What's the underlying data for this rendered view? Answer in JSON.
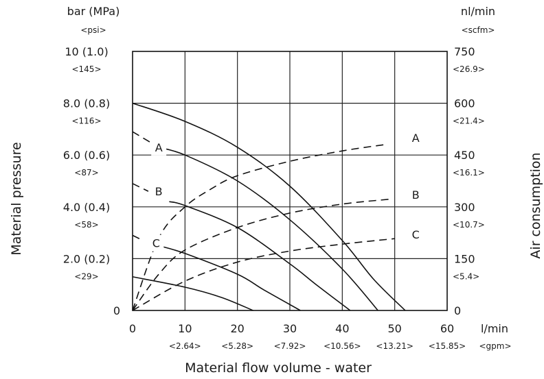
{
  "chart_data": {
    "type": "line",
    "title": "",
    "xlabel": "Material flow volume - water",
    "x_unit": "l/min",
    "x_unit_alt": "<gpm>",
    "xlim": [
      0,
      60
    ],
    "x_ticks": [
      {
        "value": 0,
        "label": "0",
        "alt": ""
      },
      {
        "value": 10,
        "label": "10",
        "alt": "<2.64>"
      },
      {
        "value": 20,
        "label": "20",
        "alt": "<5.28>"
      },
      {
        "value": 30,
        "label": "30",
        "alt": "<7.92>"
      },
      {
        "value": 40,
        "label": "40",
        "alt": "<10.56>"
      },
      {
        "value": 50,
        "label": "50",
        "alt": "<13.21>"
      },
      {
        "value": 60,
        "label": "60",
        "alt": "<15.85>"
      }
    ],
    "ylabel_left": "Material pressure",
    "y_left_unit": "bar (MPa)",
    "y_left_unit_alt": "<psi>",
    "ylim_left": [
      0,
      10
    ],
    "y_left_ticks": [
      {
        "value": 0,
        "label": "0",
        "alt": ""
      },
      {
        "value": 2,
        "label": "2.0 (0.2)",
        "alt": "<29>"
      },
      {
        "value": 4,
        "label": "4.0 (0.4)",
        "alt": "<58>"
      },
      {
        "value": 6,
        "label": "6.0 (0.6)",
        "alt": "<87>"
      },
      {
        "value": 8,
        "label": "8.0 (0.8)",
        "alt": "<116>"
      },
      {
        "value": 10,
        "label": "10 (1.0)",
        "alt": "<145>"
      }
    ],
    "ylabel_right": "Air consumption",
    "y_right_unit": "nl/min",
    "y_right_unit_alt": "<scfm>",
    "ylim_right": [
      0,
      750
    ],
    "y_right_ticks": [
      {
        "value": 0,
        "label": "0",
        "alt": ""
      },
      {
        "value": 150,
        "label": "150",
        "alt": "<5.4>"
      },
      {
        "value": 300,
        "label": "300",
        "alt": "<10.7>"
      },
      {
        "value": 450,
        "label": "450",
        "alt": "<16.1>"
      },
      {
        "value": 600,
        "label": "600",
        "alt": "<21.4>"
      },
      {
        "value": 750,
        "label": "750",
        "alt": "<26.9>"
      }
    ],
    "grid": true,
    "pressure_series": [
      {
        "name": "",
        "style": "solid",
        "axis": "left",
        "points": [
          [
            0,
            8.0
          ],
          [
            10,
            7.3
          ],
          [
            20,
            6.3
          ],
          [
            30,
            4.8
          ],
          [
            40,
            2.7
          ],
          [
            46,
            1.2
          ],
          [
            52,
            0
          ]
        ]
      },
      {
        "name": "A",
        "style": "dashed",
        "axis": "left",
        "points": [
          [
            0,
            6.9
          ],
          [
            5,
            6.3
          ]
        ]
      },
      {
        "name": "A",
        "style": "solid",
        "axis": "left",
        "points": [
          [
            5,
            6.3
          ],
          [
            10,
            6.0
          ],
          [
            20,
            5.0
          ],
          [
            30,
            3.5
          ],
          [
            40,
            1.6
          ],
          [
            46.8,
            0
          ]
        ]
      },
      {
        "name": "B",
        "style": "dashed",
        "axis": "left",
        "points": [
          [
            0,
            4.9
          ],
          [
            3,
            4.6
          ]
        ]
      },
      {
        "name": "B",
        "style": "solid",
        "axis": "left",
        "points": [
          [
            7,
            4.2
          ],
          [
            10,
            4.05
          ],
          [
            20,
            3.2
          ],
          [
            30,
            1.8
          ],
          [
            35,
            1.0
          ],
          [
            41.5,
            0
          ]
        ]
      },
      {
        "name": "C",
        "style": "dashed",
        "axis": "left",
        "points": [
          [
            0,
            2.9
          ],
          [
            2,
            2.7
          ]
        ]
      },
      {
        "name": "C",
        "style": "solid",
        "axis": "left",
        "points": [
          [
            5,
            2.5
          ],
          [
            10,
            2.2
          ],
          [
            20,
            1.4
          ],
          [
            25,
            0.8
          ],
          [
            32,
            0
          ]
        ]
      },
      {
        "name": "",
        "style": "solid",
        "axis": "left",
        "points": [
          [
            0,
            1.3
          ],
          [
            10,
            0.9
          ],
          [
            17,
            0.5
          ],
          [
            23,
            0
          ]
        ]
      }
    ],
    "air_series": [
      {
        "name": "A",
        "style": "dashed",
        "axis": "right",
        "points": [
          [
            0,
            0
          ],
          [
            5,
            210
          ],
          [
            10,
            300
          ],
          [
            15,
            352
          ],
          [
            20,
            390
          ],
          [
            30,
            432
          ],
          [
            40,
            462
          ],
          [
            48,
            480
          ]
        ]
      },
      {
        "name": "B",
        "style": "dashed",
        "axis": "right",
        "points": [
          [
            0,
            0
          ],
          [
            5,
            105
          ],
          [
            10,
            175
          ],
          [
            20,
            240
          ],
          [
            30,
            282
          ],
          [
            40,
            308
          ],
          [
            49,
            322
          ]
        ]
      },
      {
        "name": "C",
        "style": "dashed",
        "axis": "right",
        "points": [
          [
            0,
            0
          ],
          [
            10,
            85
          ],
          [
            20,
            140
          ],
          [
            30,
            172
          ],
          [
            40,
            192
          ],
          [
            50,
            208
          ]
        ]
      }
    ],
    "series_labels": [
      {
        "text": "A",
        "axis": "left",
        "x": 5,
        "y": 6.3
      },
      {
        "text": "B",
        "axis": "left",
        "x": 5,
        "y": 4.6
      },
      {
        "text": "C",
        "axis": "left",
        "x": 4.5,
        "y": 2.6
      },
      {
        "text": "A",
        "axis": "right",
        "x": 54,
        "y": 500
      },
      {
        "text": "B",
        "axis": "right",
        "x": 54,
        "y": 335
      },
      {
        "text": "C",
        "axis": "right",
        "x": 54,
        "y": 220
      }
    ]
  }
}
